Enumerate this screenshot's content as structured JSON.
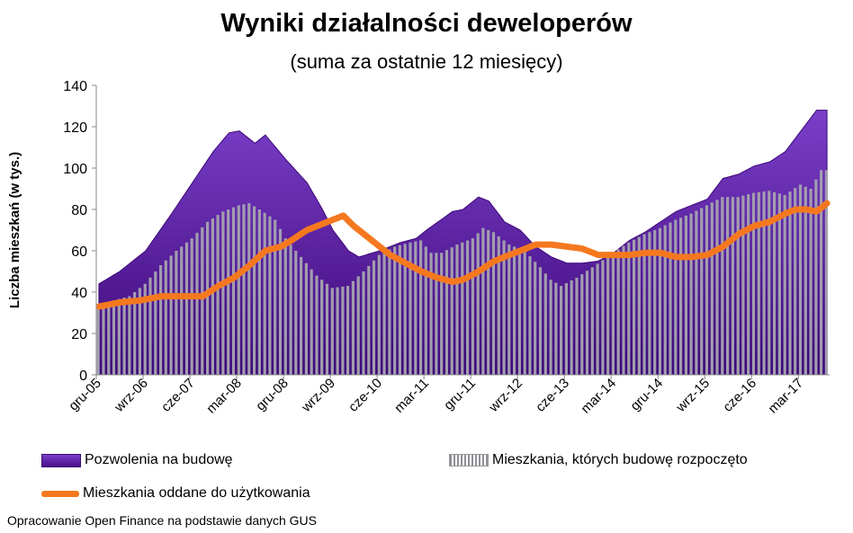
{
  "title": "Wyniki działalności deweloperów",
  "subtitle": "(suma za ostatnie 12 miesięcy)",
  "source": "Opracowanie Open Finance na podstawie danych GUS",
  "colors": {
    "permits": "#6a28b8",
    "permits_dark": "#3d0878",
    "starts": "#9d98a8",
    "completions": "#f5781f"
  },
  "chart_data": {
    "type": "area",
    "ylabel": "Liczba mieszkań (w tys.)",
    "ylim": [
      0,
      140
    ],
    "yticks": [
      0,
      20,
      40,
      60,
      80,
      100,
      120,
      140
    ],
    "grid": false,
    "x_tick_labels": [
      "gru-05",
      "wrz-06",
      "cze-07",
      "mar-08",
      "gru-08",
      "wrz-09",
      "cze-10",
      "mar-11",
      "gru-11",
      "wrz-12",
      "cze-13",
      "mar-14",
      "gru-14",
      "wrz-15",
      "cze-16",
      "mar-17"
    ],
    "x_tick_index": [
      0,
      9,
      18,
      27,
      36,
      45,
      54,
      63,
      72,
      81,
      90,
      99,
      108,
      117,
      126,
      135
    ],
    "legend": [
      {
        "label": "Pozwolenia na budowę",
        "style": "area"
      },
      {
        "label": "Mieszkania, których budowę rozpoczęto",
        "style": "bars"
      },
      {
        "label": "Mieszkania oddane do użytkowania",
        "style": "line"
      }
    ],
    "series": [
      {
        "name": "Pozwolenia na budowę",
        "type": "area",
        "anchors": [
          [
            0,
            44
          ],
          [
            4,
            50
          ],
          [
            9,
            60
          ],
          [
            14,
            78
          ],
          [
            18,
            93
          ],
          [
            22,
            108
          ],
          [
            25,
            117
          ],
          [
            27,
            118
          ],
          [
            30,
            112
          ],
          [
            32,
            116
          ],
          [
            36,
            104
          ],
          [
            40,
            93
          ],
          [
            43,
            80
          ],
          [
            45,
            70
          ],
          [
            48,
            60
          ],
          [
            50,
            57
          ],
          [
            54,
            60
          ],
          [
            58,
            64
          ],
          [
            61,
            66
          ],
          [
            63,
            70
          ],
          [
            68,
            79
          ],
          [
            70,
            80
          ],
          [
            73,
            86
          ],
          [
            75,
            84
          ],
          [
            78,
            74
          ],
          [
            81,
            70
          ],
          [
            84,
            62
          ],
          [
            87,
            57
          ],
          [
            90,
            54
          ],
          [
            93,
            54
          ],
          [
            96,
            55
          ],
          [
            99,
            59
          ],
          [
            102,
            65
          ],
          [
            105,
            69
          ],
          [
            108,
            74
          ],
          [
            111,
            79
          ],
          [
            114,
            82
          ],
          [
            117,
            85
          ],
          [
            120,
            95
          ],
          [
            123,
            97
          ],
          [
            126,
            101
          ],
          [
            129,
            103
          ],
          [
            132,
            108
          ],
          [
            135,
            118
          ],
          [
            138,
            128
          ]
        ]
      },
      {
        "name": "Mieszkania, których budowę rozpoczęto",
        "type": "bar",
        "anchors": [
          [
            0,
            33
          ],
          [
            3,
            36
          ],
          [
            6,
            38
          ],
          [
            9,
            44
          ],
          [
            12,
            53
          ],
          [
            15,
            60
          ],
          [
            18,
            66
          ],
          [
            21,
            74
          ],
          [
            24,
            79
          ],
          [
            27,
            82
          ],
          [
            29,
            83
          ],
          [
            31,
            80
          ],
          [
            34,
            75
          ],
          [
            36,
            66
          ],
          [
            39,
            57
          ],
          [
            42,
            48
          ],
          [
            45,
            42
          ],
          [
            48,
            43
          ],
          [
            51,
            50
          ],
          [
            54,
            58
          ],
          [
            57,
            62
          ],
          [
            60,
            64
          ],
          [
            62,
            65
          ],
          [
            64,
            59
          ],
          [
            66,
            59
          ],
          [
            69,
            63
          ],
          [
            72,
            66
          ],
          [
            74,
            71
          ],
          [
            76,
            69
          ],
          [
            79,
            63
          ],
          [
            82,
            60
          ],
          [
            85,
            52
          ],
          [
            87,
            46
          ],
          [
            89,
            43
          ],
          [
            92,
            47
          ],
          [
            95,
            52
          ],
          [
            99,
            59
          ],
          [
            102,
            64
          ],
          [
            105,
            68
          ],
          [
            108,
            71
          ],
          [
            111,
            75
          ],
          [
            114,
            78
          ],
          [
            117,
            82
          ],
          [
            120,
            86
          ],
          [
            123,
            86
          ],
          [
            126,
            88
          ],
          [
            129,
            89
          ],
          [
            132,
            87
          ],
          [
            135,
            92
          ],
          [
            137,
            90
          ],
          [
            139,
            99
          ]
        ]
      },
      {
        "name": "Mieszkania oddane do użytkowania",
        "type": "line",
        "anchors": [
          [
            0,
            33
          ],
          [
            4,
            35
          ],
          [
            8,
            36
          ],
          [
            12,
            38
          ],
          [
            16,
            38
          ],
          [
            20,
            38
          ],
          [
            23,
            43
          ],
          [
            26,
            47
          ],
          [
            29,
            53
          ],
          [
            32,
            60
          ],
          [
            35,
            62
          ],
          [
            37,
            65
          ],
          [
            40,
            70
          ],
          [
            43,
            73
          ],
          [
            45,
            75
          ],
          [
            47,
            77
          ],
          [
            49,
            72
          ],
          [
            51,
            68
          ],
          [
            53,
            64
          ],
          [
            56,
            58
          ],
          [
            59,
            54
          ],
          [
            62,
            50
          ],
          [
            65,
            47
          ],
          [
            68,
            45
          ],
          [
            70,
            46
          ],
          [
            73,
            50
          ],
          [
            76,
            55
          ],
          [
            79,
            58
          ],
          [
            81,
            60
          ],
          [
            84,
            63
          ],
          [
            87,
            63
          ],
          [
            90,
            62
          ],
          [
            93,
            61
          ],
          [
            96,
            58
          ],
          [
            99,
            58
          ],
          [
            102,
            58
          ],
          [
            105,
            59
          ],
          [
            108,
            59
          ],
          [
            111,
            57
          ],
          [
            114,
            57
          ],
          [
            117,
            58
          ],
          [
            120,
            62
          ],
          [
            123,
            68
          ],
          [
            126,
            72
          ],
          [
            129,
            74
          ],
          [
            132,
            78
          ],
          [
            134,
            80
          ],
          [
            136,
            80
          ],
          [
            138,
            79
          ],
          [
            140,
            83
          ]
        ]
      }
    ]
  }
}
